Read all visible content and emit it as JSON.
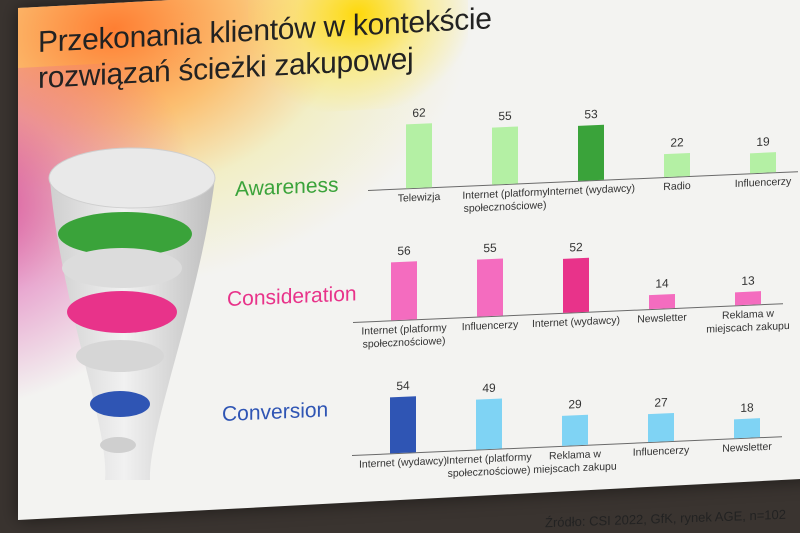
{
  "slide": {
    "title_line1": "Przekonania klientów w kontekście",
    "title_line2": "rozwiązań ścieżki zakupowej",
    "source": "Źródło: CSI 2022, GfK, rynek AGE, n=102"
  },
  "stages": [
    {
      "name": "Awareness",
      "color": "#3aa33a"
    },
    {
      "name": "Consideration",
      "color": "#e8338a"
    },
    {
      "name": "Conversion",
      "color": "#2f55b4"
    }
  ],
  "chart_data": [
    {
      "type": "bar",
      "categories": [
        "Telewizja",
        "Internet (platformy społecznościowe)",
        "Internet (wydawcy)",
        "Radio",
        "Influencerzy"
      ],
      "values": [
        62,
        55,
        53,
        22,
        19
      ],
      "colors": [
        "#b4f0a4",
        "#b4f0a4",
        "#3aa33a",
        "#b4f0a4",
        "#b4f0a4"
      ]
    },
    {
      "type": "bar",
      "categories": [
        "Internet (platformy społecznościowe)",
        "Influencerzy",
        "Internet (wydawcy)",
        "Newsletter",
        "Reklama w miejscach zakupu"
      ],
      "values": [
        56,
        55,
        52,
        14,
        13
      ],
      "colors": [
        "#f46cbf",
        "#f46cbf",
        "#e8338a",
        "#f46cbf",
        "#f46cbf"
      ]
    },
    {
      "type": "bar",
      "categories": [
        "Internet (wydawcy)",
        "Internet (platformy społecznościowe)",
        "Reklama w miejscach zakupu",
        "Influencerzy",
        "Newsletter"
      ],
      "values": [
        54,
        49,
        29,
        27,
        18
      ],
      "colors": [
        "#2f55b4",
        "#7fd3f4",
        "#7fd3f4",
        "#7fd3f4",
        "#7fd3f4"
      ]
    }
  ]
}
